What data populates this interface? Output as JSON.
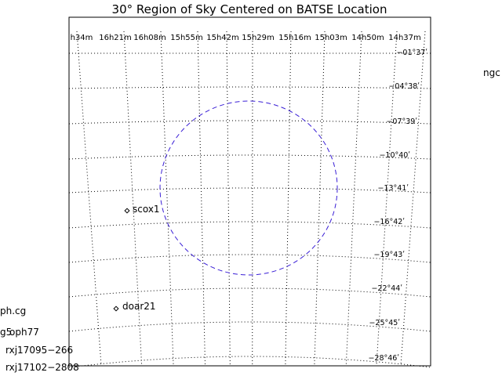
{
  "title": "30° Region of Sky Centered on BATSE Location",
  "ra_labels": [
    "h34m",
    "16h21m",
    "16h08m",
    "15h55m",
    "15h42m",
    "15h29m",
    "15h16m",
    "15h03m",
    "14h50m",
    "14h37m"
  ],
  "dec_labels": [
    "−01°37ʹ",
    "−04°38ʹ",
    "−07°39ʹ",
    "−10°40ʹ",
    "−13°41ʹ",
    "−16°42ʹ",
    "−19°43ʹ",
    "−22°44ʹ",
    "−25°45ʹ",
    "−28°46ʹ"
  ],
  "sources": [
    {
      "name": "scox1"
    },
    {
      "name": "doar21"
    },
    {
      "name": "oph77"
    },
    {
      "name": "ph.cg"
    },
    {
      "name": "g5"
    },
    {
      "name": "rxj17095−266"
    },
    {
      "name": "rxj17102−2808"
    },
    {
      "name": "ngc"
    }
  ],
  "colors": {
    "circle": "#3a1fd6",
    "grid": "#000000"
  }
}
